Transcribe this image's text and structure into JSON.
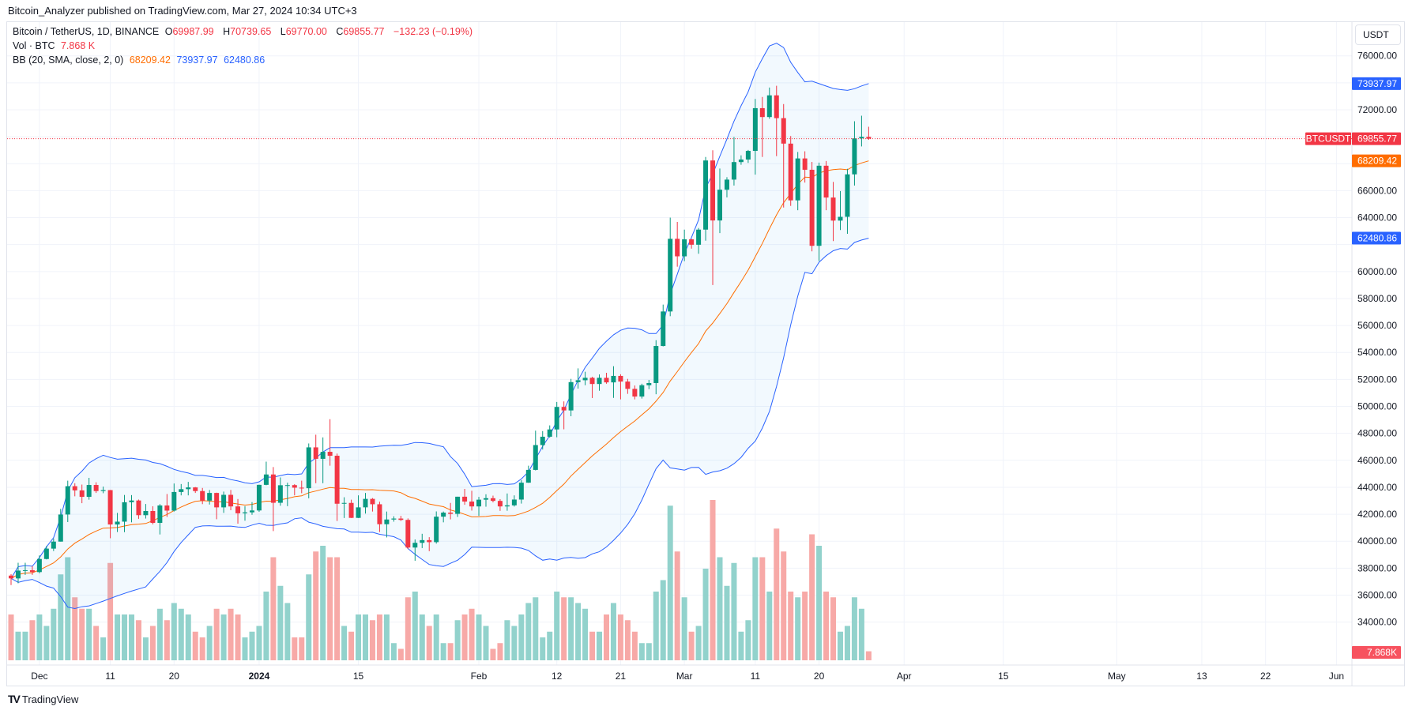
{
  "header": {
    "published": "Bitcoin_Analyzer published on TradingView.com, Mar 27, 2024 10:34 UTC+3"
  },
  "legend": {
    "symbol": "Bitcoin / TetherUS, 1D, BINANCE",
    "o_label": "O",
    "o": "69987.99",
    "h_label": "H",
    "h": "70739.65",
    "l_label": "L",
    "l": "69770.00",
    "c_label": "C",
    "c": "69855.77",
    "change": "−132.23 (−0.19%)",
    "vol_label": "Vol · BTC",
    "vol": "7.868 K",
    "bb_label": "BB (20, SMA, close, 2, 0)",
    "bb_mid": "68209.42",
    "bb_upper": "73937.97",
    "bb_lower": "62480.86"
  },
  "price_axis": {
    "currency": "USDT",
    "symbol_tag": "BTCUSDT",
    "last_price": "69855.77",
    "bb_upper": "73937.97",
    "bb_mid": "68209.42",
    "bb_lower": "62480.86",
    "volume": "7.868K"
  },
  "colors": {
    "up": "#089981",
    "down": "#f23645",
    "bb_band": "#2962ff",
    "bb_basis": "#ff6d00",
    "vol_up": "#92d2cc",
    "vol_down": "#f7a9a7"
  },
  "footer": {
    "brand": "TradingView"
  },
  "chart_data": {
    "type": "candlestick",
    "symbol": "BTCUSDT",
    "interval": "1D",
    "exchange": "BINANCE",
    "ylim": [
      31000,
      78000
    ],
    "yticks": [
      34000,
      36000,
      38000,
      40000,
      42000,
      44000,
      46000,
      48000,
      50000,
      52000,
      54000,
      56000,
      58000,
      60000,
      62000,
      64000,
      66000,
      68000,
      70000,
      72000,
      74000,
      76000
    ],
    "xticks": [
      {
        "label": "Dec",
        "index": 4
      },
      {
        "label": "11",
        "index": 14
      },
      {
        "label": "20",
        "index": 23
      },
      {
        "label": "2024",
        "index": 35
      },
      {
        "label": "15",
        "index": 49
      },
      {
        "label": "Feb",
        "index": 66
      },
      {
        "label": "12",
        "index": 77
      },
      {
        "label": "21",
        "index": 86
      },
      {
        "label": "Mar",
        "index": 95
      },
      {
        "label": "11",
        "index": 105
      },
      {
        "label": "20",
        "index": 114
      },
      {
        "label": "Apr",
        "index": 126
      },
      {
        "label": "15",
        "index": 140
      },
      {
        "label": "May",
        "index": 156
      },
      {
        "label": "13",
        "index": 168
      },
      {
        "label": "22",
        "index": 177
      },
      {
        "label": "Jun",
        "index": 187
      }
    ],
    "grid": true,
    "indicators": [
      "Bollinger Bands (20, SMA, close, 2, 0)",
      "Volume"
    ],
    "ohlc": [
      [
        37450,
        37560,
        36750,
        37240
      ],
      [
        37240,
        38400,
        36880,
        37820
      ],
      [
        37820,
        38400,
        37500,
        37850
      ],
      [
        37850,
        38150,
        37500,
        37710
      ],
      [
        37710,
        38950,
        37620,
        38680
      ],
      [
        38680,
        39650,
        38650,
        39450
      ],
      [
        39450,
        40200,
        39270,
        39970
      ],
      [
        39970,
        42400,
        39970,
        41980
      ],
      [
        41980,
        44490,
        41420,
        44080
      ],
      [
        44080,
        44300,
        43330,
        43770
      ],
      [
        43770,
        44200,
        42820,
        43290
      ],
      [
        43290,
        44700,
        43080,
        44170
      ],
      [
        44170,
        44370,
        43580,
        43720
      ],
      [
        43720,
        44050,
        43560,
        43790
      ],
      [
        43790,
        43800,
        40220,
        41240
      ],
      [
        41240,
        42100,
        40680,
        41450
      ],
      [
        41450,
        43430,
        40670,
        42890
      ],
      [
        42890,
        43420,
        41400,
        43020
      ],
      [
        43020,
        43090,
        41660,
        41930
      ],
      [
        41930,
        42760,
        41680,
        42240
      ],
      [
        42240,
        42590,
        41250,
        41360
      ],
      [
        41360,
        42750,
        40500,
        42650
      ],
      [
        42650,
        43500,
        41800,
        42270
      ],
      [
        42270,
        44280,
        42200,
        43650
      ],
      [
        43650,
        44240,
        43400,
        43860
      ],
      [
        43860,
        44400,
        43400,
        43990
      ],
      [
        43990,
        44020,
        43580,
        43720
      ],
      [
        43720,
        43950,
        42750,
        43010
      ],
      [
        43010,
        43800,
        42720,
        43580
      ],
      [
        43580,
        43600,
        41630,
        42510
      ],
      [
        42510,
        43680,
        42100,
        43440
      ],
      [
        43440,
        43800,
        42300,
        42580
      ],
      [
        42580,
        43130,
        41300,
        42070
      ],
      [
        42070,
        42600,
        41520,
        42140
      ],
      [
        42140,
        42900,
        41960,
        42280
      ],
      [
        42280,
        44190,
        42180,
        44180
      ],
      [
        44180,
        45900,
        44150,
        44950
      ],
      [
        44950,
        45500,
        40750,
        42850
      ],
      [
        42850,
        44730,
        42630,
        44150
      ],
      [
        44150,
        44340,
        42600,
        44160
      ],
      [
        44160,
        44230,
        43400,
        43970
      ],
      [
        43970,
        44490,
        43560,
        43930
      ],
      [
        43930,
        47250,
        43180,
        46960
      ],
      [
        46960,
        47900,
        44300,
        46110
      ],
      [
        46110,
        47700,
        44300,
        46630
      ],
      [
        46630,
        49050,
        45600,
        46340
      ],
      [
        46340,
        46500,
        41500,
        42780
      ],
      [
        42780,
        43260,
        41720,
        42840
      ],
      [
        42840,
        43080,
        41720,
        41730
      ],
      [
        41730,
        43400,
        41720,
        42510
      ],
      [
        42510,
        43580,
        42050,
        43140
      ],
      [
        43140,
        43200,
        42200,
        42740
      ],
      [
        42740,
        42930,
        40680,
        41260
      ],
      [
        41260,
        42200,
        40280,
        41610
      ],
      [
        41610,
        41850,
        41450,
        41680
      ],
      [
        41680,
        41880,
        41500,
        41580
      ],
      [
        41580,
        41690,
        39430,
        39530
      ],
      [
        39530,
        40130,
        38550,
        39880
      ],
      [
        39880,
        40550,
        39490,
        40080
      ],
      [
        40080,
        40300,
        39260,
        39930
      ],
      [
        39930,
        42210,
        39820,
        41820
      ],
      [
        41820,
        42200,
        41400,
        42120
      ],
      [
        42120,
        42840,
        41620,
        42030
      ],
      [
        42030,
        43300,
        41800,
        43300
      ],
      [
        43300,
        43880,
        42700,
        42940
      ],
      [
        42940,
        43740,
        42270,
        42580
      ],
      [
        42580,
        43290,
        41880,
        43080
      ],
      [
        43080,
        43480,
        42560,
        43190
      ],
      [
        43190,
        43380,
        42880,
        42990
      ],
      [
        42990,
        43120,
        42250,
        42580
      ],
      [
        42580,
        43540,
        42260,
        42660
      ],
      [
        42660,
        43400,
        42570,
        43090
      ],
      [
        43090,
        44520,
        42790,
        44340
      ],
      [
        44340,
        45600,
        44330,
        45290
      ],
      [
        45290,
        48200,
        45250,
        47130
      ],
      [
        47130,
        48170,
        46800,
        47750
      ],
      [
        47750,
        48590,
        47680,
        48290
      ],
      [
        48290,
        50330,
        47710,
        49960
      ],
      [
        49960,
        50370,
        48300,
        49700
      ],
      [
        49700,
        52040,
        49270,
        51800
      ],
      [
        51800,
        52820,
        51320,
        51940
      ],
      [
        51940,
        52570,
        51570,
        52120
      ],
      [
        52120,
        52200,
        50620,
        51660
      ],
      [
        51660,
        52370,
        51160,
        52120
      ],
      [
        52120,
        52490,
        51680,
        51780
      ],
      [
        51780,
        52980,
        50630,
        52260
      ],
      [
        52260,
        52380,
        50520,
        51840
      ],
      [
        51840,
        52040,
        50930,
        51300
      ],
      [
        51300,
        51550,
        50520,
        50730
      ],
      [
        50730,
        51680,
        50580,
        51570
      ],
      [
        51570,
        51960,
        51280,
        51730
      ],
      [
        51730,
        54910,
        50900,
        54480
      ],
      [
        54480,
        57550,
        54450,
        57040
      ],
      [
        57040,
        64000,
        56690,
        62430
      ],
      [
        62430,
        63680,
        60360,
        61130
      ],
      [
        61130,
        63110,
        60770,
        62390
      ],
      [
        62390,
        62430,
        61700,
        61990
      ],
      [
        61990,
        63230,
        61320,
        63110
      ],
      [
        63110,
        68500,
        62290,
        68240
      ],
      [
        68240,
        69000,
        59000,
        63790
      ],
      [
        63790,
        67640,
        62850,
        66070
      ],
      [
        66070,
        67000,
        65500,
        66820
      ],
      [
        66820,
        69980,
        66380,
        68120
      ],
      [
        68120,
        68620,
        67920,
        68310
      ],
      [
        68310,
        69020,
        68060,
        68950
      ],
      [
        68950,
        72800,
        67190,
        72120
      ],
      [
        72120,
        72950,
        68500,
        71460
      ],
      [
        71460,
        73650,
        71330,
        73070
      ],
      [
        73070,
        73780,
        68560,
        71380
      ],
      [
        71380,
        72420,
        64750,
        69490
      ],
      [
        69490,
        70050,
        64870,
        65280
      ],
      [
        65280,
        68870,
        64550,
        68390
      ],
      [
        68390,
        68920,
        66600,
        67550
      ],
      [
        67550,
        68130,
        61500,
        61910
      ],
      [
        61910,
        68080,
        60780,
        67850
      ],
      [
        67850,
        68200,
        64550,
        65490
      ],
      [
        65490,
        66650,
        62260,
        63780
      ],
      [
        63780,
        65970,
        63080,
        64060
      ],
      [
        64060,
        67620,
        62800,
        67210
      ],
      [
        67210,
        71150,
        66380,
        69880
      ],
      [
        69880,
        71560,
        69280,
        69990
      ],
      [
        69987.99,
        70739.65,
        69770,
        69855.77
      ]
    ],
    "volume_k": [
      40,
      25,
      25,
      35,
      40,
      30,
      45,
      75,
      90,
      55,
      45,
      45,
      30,
      20,
      85,
      40,
      40,
      40,
      35,
      20,
      30,
      45,
      35,
      50,
      45,
      40,
      25,
      20,
      30,
      45,
      40,
      45,
      40,
      20,
      25,
      30,
      60,
      90,
      65,
      50,
      20,
      20,
      75,
      95,
      100,
      90,
      90,
      30,
      25,
      40,
      40,
      35,
      40,
      40,
      15,
      10,
      55,
      60,
      40,
      30,
      40,
      15,
      15,
      35,
      40,
      45,
      40,
      30,
      10,
      15,
      35,
      30,
      40,
      50,
      55,
      20,
      25,
      60,
      55,
      55,
      50,
      45,
      25,
      25,
      40,
      50,
      40,
      35,
      25,
      15,
      15,
      60,
      70,
      135,
      95,
      55,
      25,
      30,
      80,
      140,
      90,
      65,
      85,
      25,
      35,
      90,
      90,
      60,
      115,
      95,
      60,
      55,
      60,
      110,
      100,
      60,
      55,
      25,
      30,
      55,
      45,
      7.868
    ]
  }
}
